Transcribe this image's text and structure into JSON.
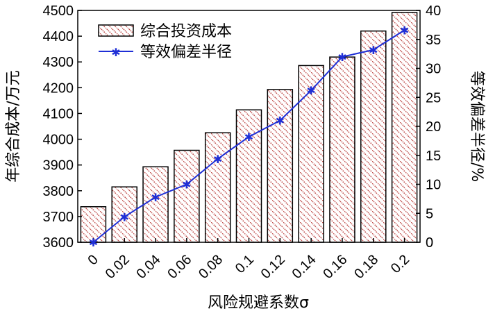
{
  "chart_data": {
    "type": "bar+line",
    "categories": [
      "0",
      "0.02",
      "0.04",
      "0.06",
      "0.08",
      "0.1",
      "0.12",
      "0.14",
      "0.16",
      "0.18",
      "0.2"
    ],
    "series": [
      {
        "name": "综合投资成本",
        "type": "bar",
        "axis": "left",
        "values": [
          3738,
          3815,
          3893,
          3957,
          4025,
          4114,
          4193,
          4286,
          4319,
          4420,
          4492
        ],
        "color": "#c0504d"
      },
      {
        "name": "等效偏差半径",
        "type": "line",
        "axis": "right",
        "values": [
          0,
          4.4,
          7.8,
          10,
          14.4,
          18.2,
          21,
          26.2,
          32,
          33.2,
          36.6
        ],
        "color": "#1f2fd6"
      }
    ],
    "xlabel": "风险规避系数σ",
    "ylabel_left": "年综合成本/万元",
    "ylabel_right": "等效偏差半径/%",
    "ylim_left": [
      3600,
      4500
    ],
    "ylim_right": [
      0,
      40
    ],
    "yticks_left": [
      3600,
      3700,
      3800,
      3900,
      4000,
      4100,
      4200,
      4300,
      4400,
      4500
    ],
    "yticks_right": [
      0,
      5,
      10,
      15,
      20,
      25,
      30,
      35,
      40
    ],
    "legend_position": "top-left",
    "grid": false
  }
}
